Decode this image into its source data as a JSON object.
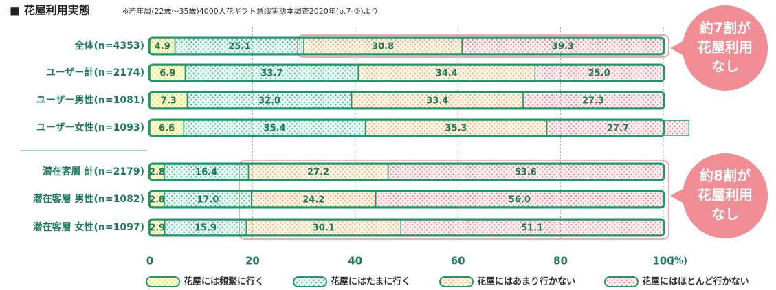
{
  "chart_data": {
    "type": "stacked-bar-horizontal",
    "title": "■ 花屋利用実態",
    "subtitle": "※若年層(22歳～35歳)4000人花ギフト意識実態本調査2020年(p.7-②)より",
    "categories": [
      "全体(n=4353)",
      "ユーザー計(n=2174)",
      "ユーザー男性(n=1081)",
      "ユーザー女性(n=1093)",
      "潜在客層 計(n=2179)",
      "潜在客層 男性(n=1082)",
      "潜在客層 女性(n=1097)"
    ],
    "series": [
      {
        "name": "花屋には頻繁に行く",
        "color": "#e8d800",
        "values": [
          4.9,
          6.9,
          7.3,
          6.6,
          2.8,
          2.8,
          2.9
        ],
        "value_labels": [
          "4.9",
          "6.9",
          "7.3",
          "6.6",
          "2.8",
          "2.8",
          "2.9"
        ]
      },
      {
        "name": "花屋にはたまに行く",
        "color": "#3db58f",
        "values": [
          25.1,
          33.7,
          32.0,
          35.4,
          16.4,
          17.0,
          15.9
        ],
        "value_labels": [
          "25.1",
          "33.7",
          "32.0",
          "35.4",
          "16.4",
          "17.0",
          "15.9"
        ]
      },
      {
        "name": "花屋にはあまり行かない",
        "color": "#f5a04a",
        "values": [
          30.8,
          34.4,
          33.4,
          35.3,
          27.2,
          24.2,
          30.1
        ],
        "value_labels": [
          "30.8",
          "34.4",
          "33.4",
          "35.3",
          "27.2",
          "24.2",
          "30.1"
        ]
      },
      {
        "name": "花屋にはほとんど行かない",
        "color": "#f0707e",
        "values": [
          39.3,
          25.0,
          27.3,
          27.7,
          53.6,
          56.0,
          51.1
        ],
        "value_labels": [
          "39.3",
          "25.0",
          "27.3",
          "27.7",
          "53.6",
          "56.0",
          "51.1"
        ]
      }
    ],
    "xlim": [
      0,
      100
    ],
    "xticks": [
      0,
      20,
      40,
      60,
      80,
      100
    ],
    "x_unit": "(%)",
    "grid": true,
    "legend": "bottom",
    "callouts": [
      {
        "lines": [
          "約7割が",
          "花屋利用",
          "なし"
        ]
      },
      {
        "lines": [
          "約8割が",
          "花屋利用",
          "なし"
        ]
      }
    ]
  }
}
